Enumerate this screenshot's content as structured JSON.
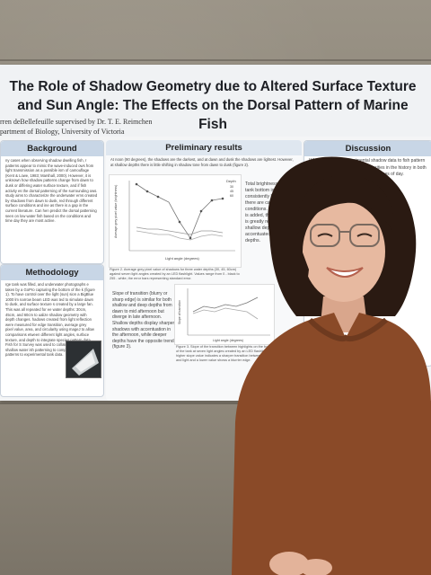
{
  "poster": {
    "title": "The Role of Shadow Geometry due to Altered Surface Texture and Sun Angle: The Effects on the Dorsal Pattern of Marine Fish",
    "authors_line": "rren deBellefeuille supervised by Dr. T. E. Reimchen",
    "department_line": "partment of Biology, University of Victoria",
    "sections": {
      "background": {
        "heading": "Background",
        "text": "ny cases when observing shadow dwelling fish, r patterns appear to mimic the wave-induced ows from light transmission as a possible ism of camouflage (Kent & Lowe, 1983; Marshall, 2000). However, it is unknown how shadow patterns change from dawn to dusk or differing water surface texture, and if fish activity es the dorsal patterning of the surrounding ows. study aims to characterize the underwater erns created by shadows from dawn to dusk, red through different surface conditions and ine as there is a gap in the current literature. Can hen predict the dorsal patterning seen on low water fish based on the conditions and time day they are most active."
      },
      "methodology": {
        "heading": "Methodology",
        "text": "rge tank was filled, and underwater photographs e taken by a GoPro capturing the bottom of the k (figure 1). To have control over the light (sun) sion a BigBlue 1000 lm narrow beam LED was ted to simulate dawn to dusk, and surface texture s created by a large fan. This was all repeated for ee water depths: 30cm, 45cm, and 60cm to ualize shadow geometry with depth changes. hadows created from light reflection were measured for edge transition, average grey pixel value, area, and circularity using mageJ to allow comparisons etween different light angles, surface texture, and depth to integrate species pattern data. Fish for S Survey was used to collate common shallow water ish patterning to compare dorsal patterns to experimental tank data."
      },
      "results": {
        "heading": "Preliminary results",
        "intro": "At noon (90 degrees), the shadows are the darkest, and at dawn and dusk the shadows are lightest. However, at shallow depths there is little shifting in shadow tone from dawn to dusk (figure 2).",
        "side_text": "Total brightness of the tank bottom is consistently light when there are calm surface conditions. When the fan is added, the brightness is greatly reduced with shallow depths more accentuated than deeper depths.",
        "fig2_caption": "Figure 2. Average grey pixel value of shadows for three water depths (30, 45, 60cm) against seven light angles created by an LED flashlight. Values range from 0 - black to 255 - white, the error bars representing standard error.",
        "slope_text": "Slope of transition (blurry or sharp edge) is similar for both shallow and deep depths from dawn to mid afternoon but diverge in late afternoon. Shallow depths display sharper shadows with accentuation in the afternoon, while deeper depths have the opposite trend (figure 3).",
        "fig3_caption": "Figure 3. Slope of the transition between highlights on the bottom of the tank at seven light angles created by an LED flashlight. A higher slope value indicates a sharper transition between dark and light and a lower value shows a blurrier edge."
      },
      "discussion": {
        "heading": "Discussion",
        "text": "When comparing experimental shadow data to fish pattern data, there are overlapping similarities in the history in both patterns and tones level. Flash the times of day."
      }
    },
    "fig2": {
      "xlabel": "Light angle (degrees)",
      "ylabel": "Average grey pixel value (brightness)",
      "legend_title": "Depth",
      "legend": [
        "30",
        "45",
        "60"
      ]
    },
    "fig3": {
      "xlabel": "Light angle (degrees)",
      "ylabel": "Slope of transition"
    }
  },
  "colors": {
    "panel_header": "#c8d6e6",
    "sweater": "#8a4a28",
    "hair": "#2a1a12",
    "skin": "#e7b9a0"
  }
}
